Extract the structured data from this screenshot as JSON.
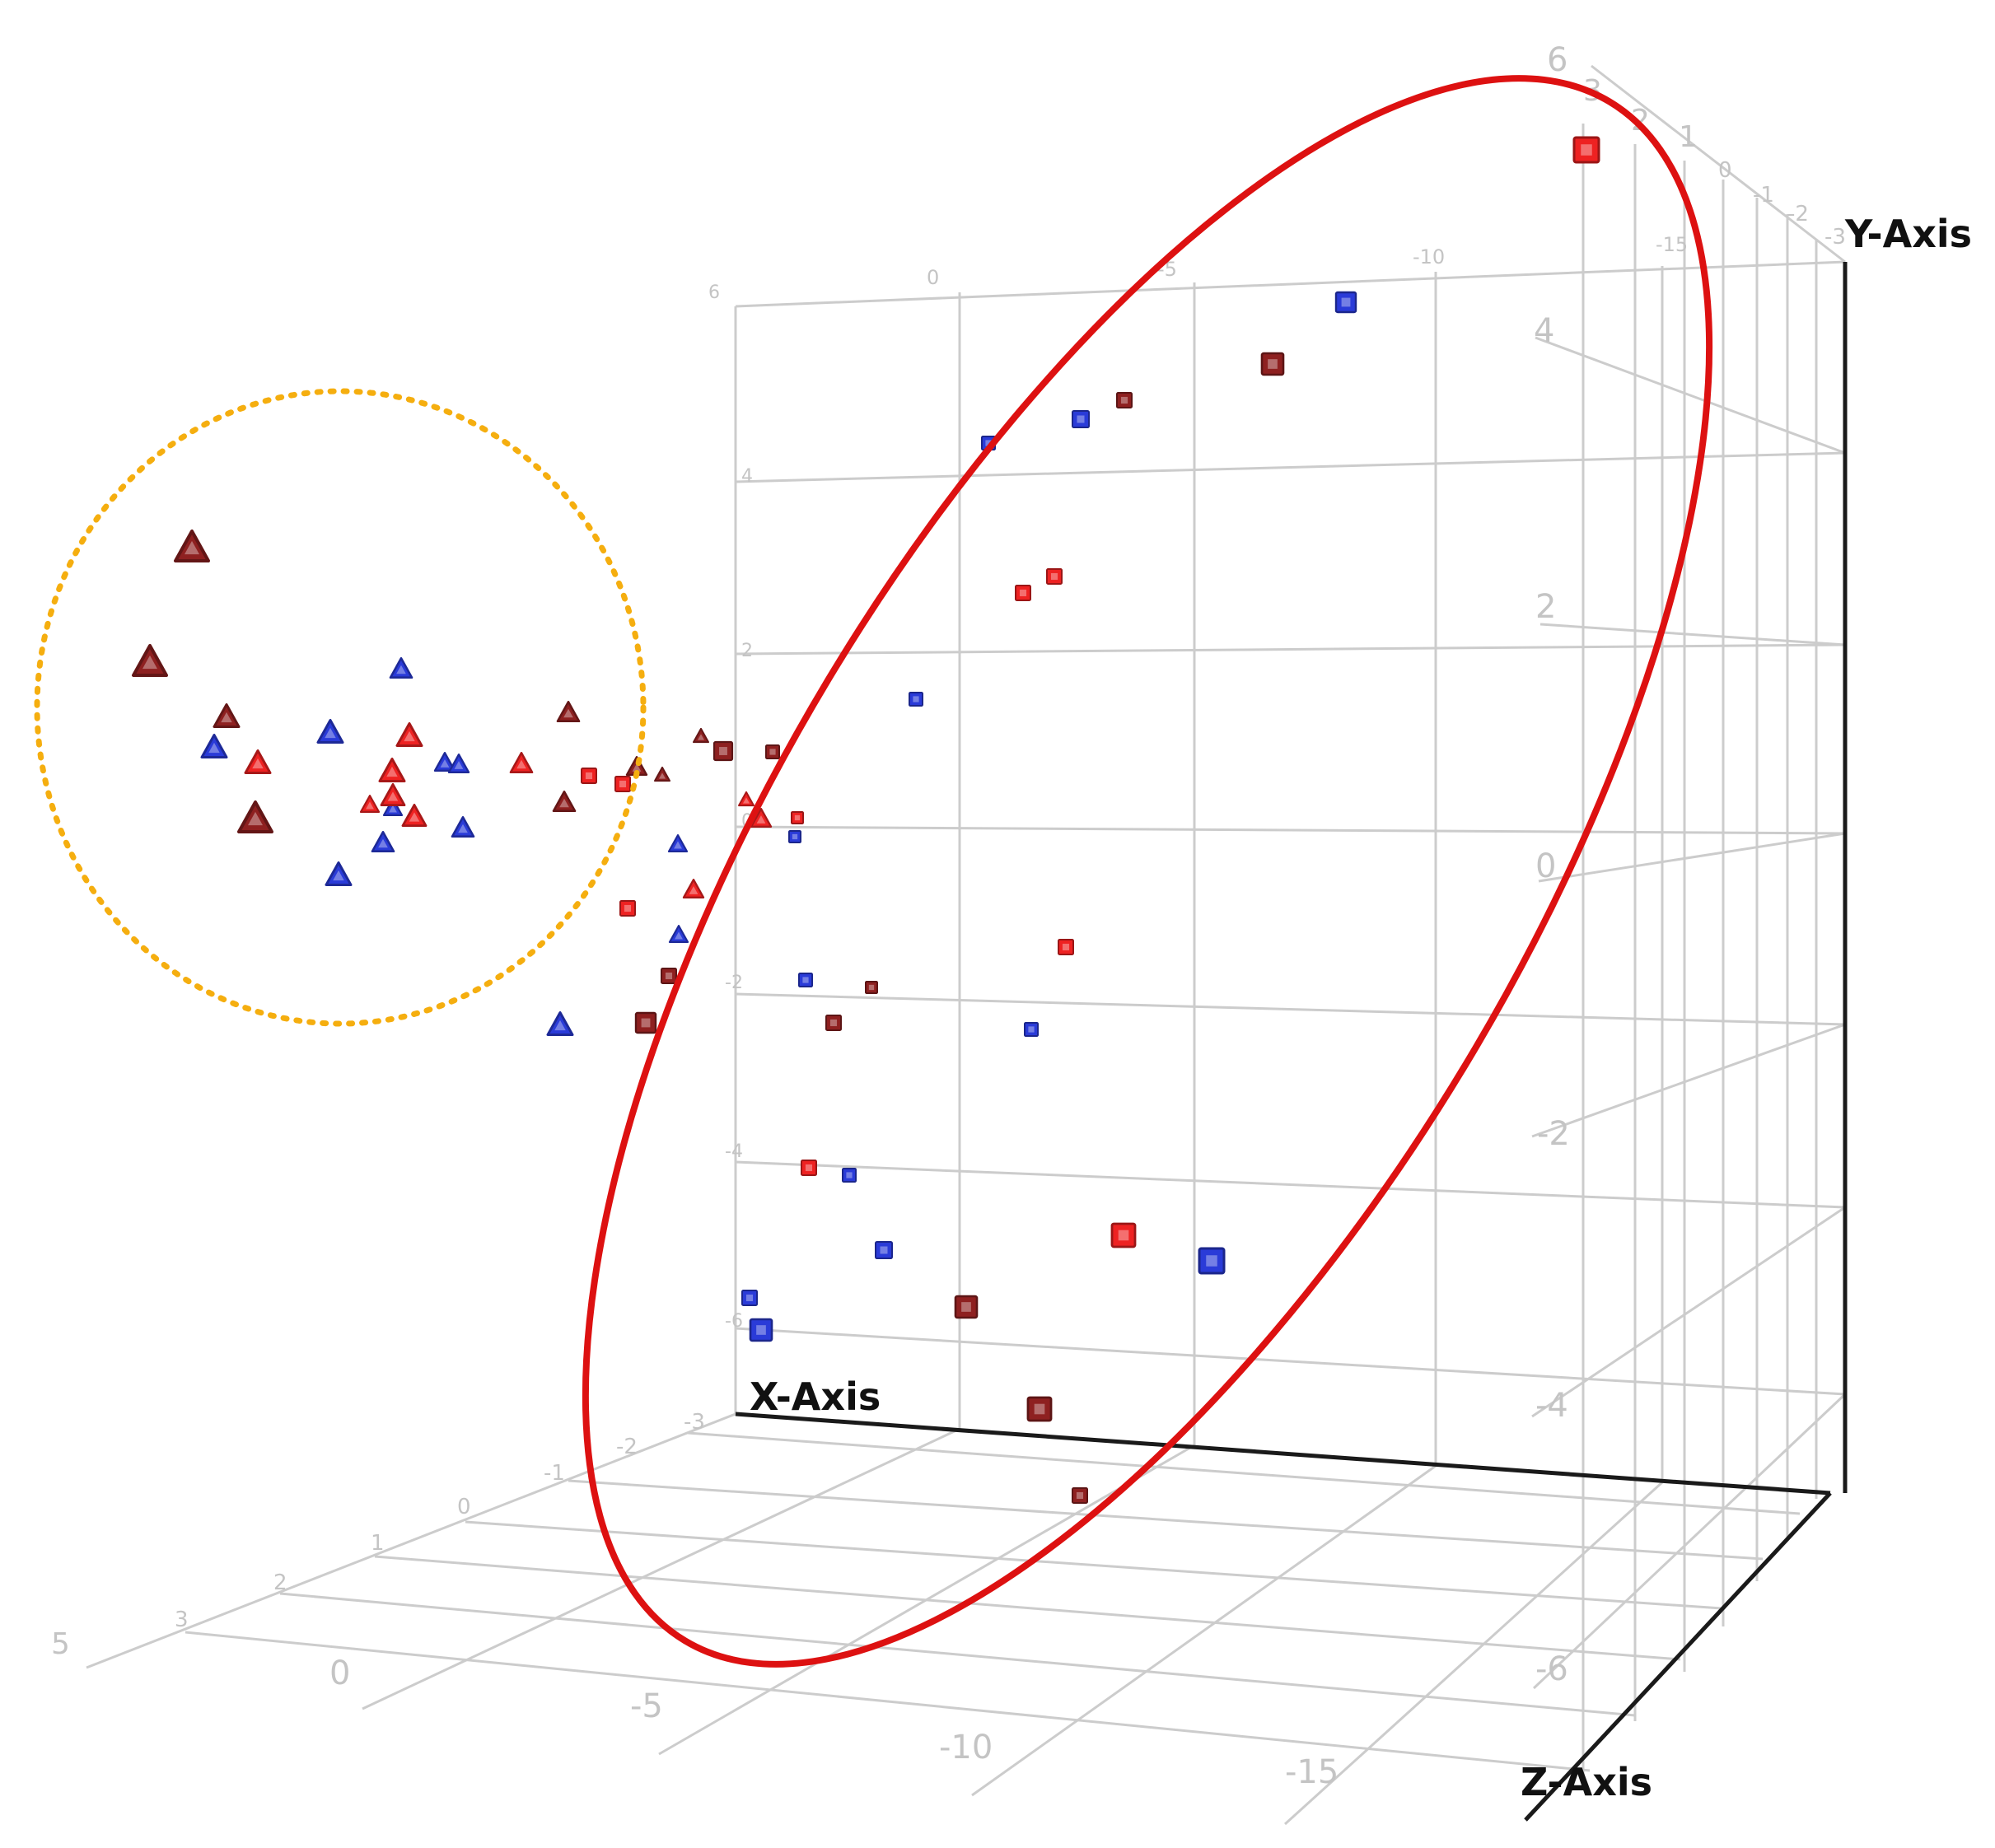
{
  "chart_data": {
    "type": "scatter",
    "projection": "3d",
    "title": "",
    "axes": {
      "x": {
        "label": "X-Axis",
        "front_ticks": [
          "0",
          "-5",
          "-10",
          "-15"
        ],
        "top_ticks": [
          "0",
          "-5",
          "-10",
          "-15"
        ],
        "range": [
          5,
          -19
        ]
      },
      "y": {
        "label": "Y-Axis",
        "left_ticks": [
          "6",
          "4",
          "2",
          "0",
          "-2",
          "-4",
          "-6"
        ],
        "right_ticks": [
          "6",
          "4",
          "2",
          "0",
          "-2",
          "-4",
          "-6"
        ],
        "range": [
          -7,
          6
        ]
      },
      "z": {
        "label": "Z-Axis",
        "left_ticks": [
          "5",
          "3",
          "2",
          "1",
          "0",
          "-1",
          "-2",
          "-3"
        ],
        "right_ticks": [
          "3",
          "2",
          "1",
          "0",
          "-1",
          "-2",
          "-3"
        ],
        "range": [
          -3,
          5
        ]
      }
    },
    "grid": true,
    "legend": "none",
    "marker_colors": {
      "red": "#ee2222",
      "blue": "#2a3bd8",
      "darkred": "#8e2020"
    },
    "series": [
      {
        "marker": "triangle",
        "points": [
          {
            "sx": 233,
            "sy": 663,
            "size": 40,
            "color": "darkred"
          },
          {
            "sx": 182,
            "sy": 802,
            "size": 40,
            "color": "darkred"
          },
          {
            "sx": 275,
            "sy": 869,
            "size": 30,
            "color": "darkred"
          },
          {
            "sx": 310,
            "sy": 992,
            "size": 40,
            "color": "darkred"
          },
          {
            "sx": 690,
            "sy": 864,
            "size": 26,
            "color": "darkred"
          },
          {
            "sx": 773,
            "sy": 930,
            "size": 24,
            "color": "darkred"
          },
          {
            "sx": 685,
            "sy": 973,
            "size": 26,
            "color": "darkred"
          },
          {
            "sx": 851,
            "sy": 893,
            "size": 18,
            "color": "darkred"
          },
          {
            "sx": 804,
            "sy": 940,
            "size": 18,
            "color": "darkred"
          },
          {
            "sx": 487,
            "sy": 811,
            "size": 26,
            "color": "blue"
          },
          {
            "sx": 401,
            "sy": 888,
            "size": 30,
            "color": "blue"
          },
          {
            "sx": 260,
            "sy": 906,
            "size": 30,
            "color": "blue"
          },
          {
            "sx": 540,
            "sy": 925,
            "size": 24,
            "color": "blue"
          },
          {
            "sx": 557,
            "sy": 927,
            "size": 24,
            "color": "blue"
          },
          {
            "sx": 477,
            "sy": 980,
            "size": 22,
            "color": "blue"
          },
          {
            "sx": 465,
            "sy": 1022,
            "size": 26,
            "color": "blue"
          },
          {
            "sx": 562,
            "sy": 1004,
            "size": 26,
            "color": "blue"
          },
          {
            "sx": 411,
            "sy": 1061,
            "size": 30,
            "color": "blue"
          },
          {
            "sx": 680,
            "sy": 1243,
            "size": 30,
            "color": "blue"
          },
          {
            "sx": 823,
            "sy": 1024,
            "size": 22,
            "color": "blue"
          },
          {
            "sx": 824,
            "sy": 1134,
            "size": 22,
            "color": "blue"
          },
          {
            "sx": 497,
            "sy": 892,
            "size": 30,
            "color": "red"
          },
          {
            "sx": 313,
            "sy": 925,
            "size": 30,
            "color": "red"
          },
          {
            "sx": 476,
            "sy": 935,
            "size": 30,
            "color": "red"
          },
          {
            "sx": 633,
            "sy": 926,
            "size": 26,
            "color": "red"
          },
          {
            "sx": 477,
            "sy": 965,
            "size": 28,
            "color": "red"
          },
          {
            "sx": 449,
            "sy": 976,
            "size": 22,
            "color": "red"
          },
          {
            "sx": 503,
            "sy": 990,
            "size": 28,
            "color": "red"
          },
          {
            "sx": 924,
            "sy": 993,
            "size": 24,
            "color": "red"
          },
          {
            "sx": 906,
            "sy": 970,
            "size": 18,
            "color": "red"
          },
          {
            "sx": 842,
            "sy": 1079,
            "size": 24,
            "color": "red"
          }
        ]
      },
      {
        "marker": "square",
        "points": [
          {
            "sx": 1926,
            "sy": 182,
            "size": 30,
            "color": "red"
          },
          {
            "sx": 1634,
            "sy": 367,
            "size": 24,
            "color": "blue"
          },
          {
            "sx": 1545,
            "sy": 442,
            "size": 26,
            "color": "darkred"
          },
          {
            "sx": 1365,
            "sy": 486,
            "size": 18,
            "color": "darkred"
          },
          {
            "sx": 1312,
            "sy": 509,
            "size": 20,
            "color": "blue"
          },
          {
            "sx": 1200,
            "sy": 538,
            "size": 16,
            "color": "blue"
          },
          {
            "sx": 1280,
            "sy": 700,
            "size": 18,
            "color": "red"
          },
          {
            "sx": 1242,
            "sy": 720,
            "size": 18,
            "color": "red"
          },
          {
            "sx": 1112,
            "sy": 849,
            "size": 16,
            "color": "blue"
          },
          {
            "sx": 878,
            "sy": 912,
            "size": 22,
            "color": "darkred"
          },
          {
            "sx": 938,
            "sy": 913,
            "size": 16,
            "color": "darkred"
          },
          {
            "sx": 715,
            "sy": 942,
            "size": 18,
            "color": "red"
          },
          {
            "sx": 756,
            "sy": 952,
            "size": 18,
            "color": "red"
          },
          {
            "sx": 968,
            "sy": 993,
            "size": 14,
            "color": "red"
          },
          {
            "sx": 965,
            "sy": 1016,
            "size": 14,
            "color": "blue"
          },
          {
            "sx": 762,
            "sy": 1103,
            "size": 18,
            "color": "red"
          },
          {
            "sx": 812,
            "sy": 1185,
            "size": 18,
            "color": "darkred"
          },
          {
            "sx": 1294,
            "sy": 1150,
            "size": 18,
            "color": "red"
          },
          {
            "sx": 978,
            "sy": 1190,
            "size": 16,
            "color": "blue"
          },
          {
            "sx": 1058,
            "sy": 1199,
            "size": 14,
            "color": "darkred"
          },
          {
            "sx": 784,
            "sy": 1242,
            "size": 24,
            "color": "darkred"
          },
          {
            "sx": 1012,
            "sy": 1242,
            "size": 18,
            "color": "darkred"
          },
          {
            "sx": 1252,
            "sy": 1250,
            "size": 16,
            "color": "blue"
          },
          {
            "sx": 982,
            "sy": 1418,
            "size": 18,
            "color": "red"
          },
          {
            "sx": 1031,
            "sy": 1427,
            "size": 16,
            "color": "blue"
          },
          {
            "sx": 1073,
            "sy": 1518,
            "size": 20,
            "color": "blue"
          },
          {
            "sx": 1364,
            "sy": 1500,
            "size": 28,
            "color": "red"
          },
          {
            "sx": 1471,
            "sy": 1531,
            "size": 30,
            "color": "blue"
          },
          {
            "sx": 910,
            "sy": 1576,
            "size": 18,
            "color": "blue"
          },
          {
            "sx": 924,
            "sy": 1615,
            "size": 26,
            "color": "blue"
          },
          {
            "sx": 1173,
            "sy": 1587,
            "size": 26,
            "color": "darkred"
          },
          {
            "sx": 1262,
            "sy": 1711,
            "size": 28,
            "color": "darkred"
          },
          {
            "sx": 1311,
            "sy": 1816,
            "size": 18,
            "color": "darkred"
          }
        ]
      }
    ],
    "annotations": [
      {
        "shape": "dotted-ellipse",
        "color": "#f5ae0f",
        "around": "triangle cluster"
      },
      {
        "shape": "solid-ellipse",
        "color": "#dd1111",
        "around": "square cluster"
      }
    ]
  }
}
